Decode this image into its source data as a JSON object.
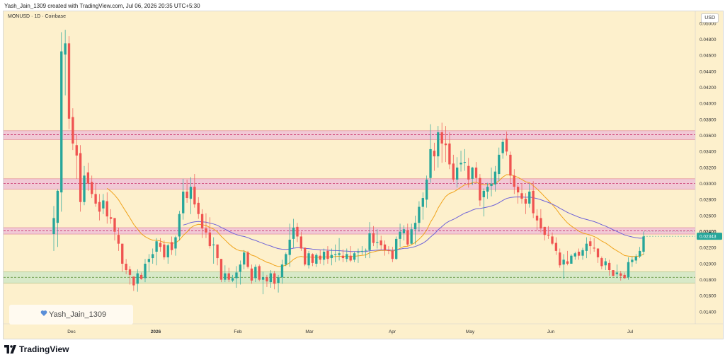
{
  "header": {
    "attribution": "Yash_Jain_1309 created with TradingView.com, Jul 06, 2026 20:35 UTC+5:30"
  },
  "symbol_label": "MONUSD · 1D · Coinbase",
  "currency_button": "USD",
  "watermark_user": "Yash_Jain_1309",
  "footer_brand": "TradingView",
  "colors": {
    "background": "#fdf0cc",
    "up": "#26a69a",
    "down": "#ef5350",
    "ema_fast": "#f0a31b",
    "ema_slow": "#6f63d8",
    "resistance_zone": "#f0c4d6",
    "support_zone": "#d4e8c8",
    "zone_line": "#c2185b",
    "support_line": "#558b2f"
  },
  "chart_data": {
    "type": "candlestick",
    "title": "MONUSD · 1D · Coinbase",
    "y_ticks": [
      "0.05000",
      "0.04800",
      "0.04600",
      "0.04400",
      "0.04200",
      "0.04000",
      "0.03800",
      "0.03600",
      "0.03400",
      "0.03200",
      "0.03000",
      "0.02800",
      "0.02600",
      "0.02400",
      "0.02200",
      "0.02000",
      "0.01800",
      "0.01600",
      "0.01400"
    ],
    "x_ticks": [
      "Dec",
      "2026",
      "Feb",
      "Mar",
      "Apr",
      "May",
      "Jun",
      "Jul"
    ],
    "ylim": [
      0.0125,
      0.0515
    ],
    "current_price": "0.02343",
    "price_line_label": "0.02400",
    "zones": [
      {
        "name": "resistance",
        "low": 0.0355,
        "high": 0.0366,
        "mid": 0.0361
      },
      {
        "name": "resistance",
        "low": 0.0293,
        "high": 0.0306,
        "mid": 0.03
      },
      {
        "name": "resistance",
        "low": 0.0237,
        "high": 0.0245,
        "mid": 0.0241
      },
      {
        "name": "support",
        "low": 0.0176,
        "high": 0.019,
        "mid": 0.0183
      }
    ],
    "ohlc": [
      [
        0.0237,
        0.0272,
        0.0216,
        0.0257
      ],
      [
        0.0251,
        0.0293,
        0.0221,
        0.0291
      ],
      [
        0.0289,
        0.0489,
        0.0265,
        0.0465
      ],
      [
        0.0461,
        0.0492,
        0.041,
        0.0475
      ],
      [
        0.0475,
        0.0484,
        0.0368,
        0.0381
      ],
      [
        0.0383,
        0.0394,
        0.0342,
        0.035
      ],
      [
        0.0348,
        0.0362,
        0.0306,
        0.0335
      ],
      [
        0.0338,
        0.0348,
        0.0265,
        0.0277
      ],
      [
        0.0277,
        0.0322,
        0.0273,
        0.031
      ],
      [
        0.0314,
        0.0326,
        0.0291,
        0.03
      ],
      [
        0.0302,
        0.031,
        0.0282,
        0.0287
      ],
      [
        0.0287,
        0.0301,
        0.0271,
        0.0275
      ],
      [
        0.0277,
        0.0287,
        0.0254,
        0.0265
      ],
      [
        0.0269,
        0.0287,
        0.0262,
        0.0279
      ],
      [
        0.0278,
        0.0289,
        0.025,
        0.0259
      ],
      [
        0.0258,
        0.0268,
        0.025,
        0.0256
      ],
      [
        0.0257,
        0.0257,
        0.0229,
        0.024
      ],
      [
        0.0236,
        0.0245,
        0.0216,
        0.0225
      ],
      [
        0.0225,
        0.0225,
        0.019,
        0.02
      ],
      [
        0.02,
        0.0206,
        0.0187,
        0.0192
      ],
      [
        0.0193,
        0.0197,
        0.0174,
        0.0186
      ],
      [
        0.0184,
        0.0184,
        0.0166,
        0.0173
      ],
      [
        0.0175,
        0.0193,
        0.0165,
        0.0188
      ],
      [
        0.0186,
        0.0189,
        0.018,
        0.0181
      ],
      [
        0.0182,
        0.0206,
        0.0177,
        0.02
      ],
      [
        0.0202,
        0.0212,
        0.019,
        0.0206
      ],
      [
        0.0207,
        0.0219,
        0.02,
        0.0212
      ],
      [
        0.0215,
        0.0232,
        0.0198,
        0.0228
      ],
      [
        0.0226,
        0.0232,
        0.0215,
        0.0221
      ],
      [
        0.0224,
        0.0229,
        0.0205,
        0.0208
      ],
      [
        0.0208,
        0.0225,
        0.02,
        0.0223
      ],
      [
        0.0227,
        0.0234,
        0.0211,
        0.0217
      ],
      [
        0.0219,
        0.0235,
        0.021,
        0.0233
      ],
      [
        0.0234,
        0.0266,
        0.0229,
        0.0262
      ],
      [
        0.0263,
        0.0306,
        0.0255,
        0.029
      ],
      [
        0.029,
        0.0305,
        0.0276,
        0.0282
      ],
      [
        0.0281,
        0.0308,
        0.0262,
        0.0296
      ],
      [
        0.0296,
        0.0312,
        0.027,
        0.0274
      ],
      [
        0.0276,
        0.0283,
        0.0256,
        0.0262
      ],
      [
        0.0262,
        0.0268,
        0.0232,
        0.0244
      ],
      [
        0.0244,
        0.0263,
        0.0232,
        0.0239
      ],
      [
        0.0239,
        0.0258,
        0.0219,
        0.0222
      ],
      [
        0.0223,
        0.0233,
        0.02,
        0.0224
      ],
      [
        0.0224,
        0.0224,
        0.0198,
        0.0207
      ],
      [
        0.0206,
        0.0206,
        0.0177,
        0.018
      ],
      [
        0.018,
        0.0198,
        0.0177,
        0.0188
      ],
      [
        0.0188,
        0.0195,
        0.0177,
        0.018
      ],
      [
        0.0179,
        0.0186,
        0.0177,
        0.0182
      ],
      [
        0.0182,
        0.0197,
        0.017,
        0.0189
      ],
      [
        0.019,
        0.0204,
        0.0174,
        0.0199
      ],
      [
        0.0199,
        0.0217,
        0.0193,
        0.0214
      ],
      [
        0.0214,
        0.0216,
        0.0194,
        0.0196
      ],
      [
        0.0194,
        0.0199,
        0.0175,
        0.0179
      ],
      [
        0.0182,
        0.0199,
        0.0177,
        0.0196
      ],
      [
        0.0197,
        0.0199,
        0.0178,
        0.018
      ],
      [
        0.018,
        0.019,
        0.0162,
        0.0183
      ],
      [
        0.0183,
        0.0186,
        0.0171,
        0.0178
      ],
      [
        0.0177,
        0.0192,
        0.017,
        0.0188
      ],
      [
        0.0188,
        0.0191,
        0.0168,
        0.0175
      ],
      [
        0.0176,
        0.0186,
        0.0164,
        0.0183
      ],
      [
        0.0183,
        0.0205,
        0.0175,
        0.0199
      ],
      [
        0.0199,
        0.0214,
        0.0197,
        0.0212
      ],
      [
        0.0211,
        0.025,
        0.0196,
        0.023
      ],
      [
        0.0231,
        0.0256,
        0.022,
        0.0245
      ],
      [
        0.0246,
        0.0251,
        0.0227,
        0.0234
      ],
      [
        0.0234,
        0.024,
        0.0216,
        0.0219
      ],
      [
        0.022,
        0.022,
        0.0197,
        0.0199
      ],
      [
        0.0198,
        0.0216,
        0.0194,
        0.0213
      ],
      [
        0.0212,
        0.0213,
        0.0197,
        0.0201
      ],
      [
        0.02,
        0.0213,
        0.0196,
        0.0211
      ],
      [
        0.021,
        0.0217,
        0.02,
        0.0205
      ],
      [
        0.0205,
        0.0219,
        0.0198,
        0.0215
      ],
      [
        0.0216,
        0.0222,
        0.02,
        0.0206
      ],
      [
        0.0207,
        0.0219,
        0.0198,
        0.0211
      ],
      [
        0.0211,
        0.0224,
        0.0202,
        0.0212
      ],
      [
        0.0211,
        0.0232,
        0.0204,
        0.0213
      ],
      [
        0.021,
        0.0218,
        0.0202,
        0.0207
      ],
      [
        0.0206,
        0.0219,
        0.0202,
        0.0212
      ],
      [
        0.021,
        0.0222,
        0.0202,
        0.0204
      ],
      [
        0.0205,
        0.0215,
        0.0202,
        0.0213
      ],
      [
        0.0214,
        0.0219,
        0.0201,
        0.0215
      ],
      [
        0.0215,
        0.0222,
        0.0211,
        0.0216
      ],
      [
        0.0217,
        0.0219,
        0.0207,
        0.0217
      ],
      [
        0.0217,
        0.0252,
        0.0207,
        0.0238
      ],
      [
        0.0238,
        0.0247,
        0.0222,
        0.0226
      ],
      [
        0.0226,
        0.0243,
        0.0219,
        0.0227
      ],
      [
        0.0229,
        0.0235,
        0.0217,
        0.0223
      ],
      [
        0.0224,
        0.0229,
        0.021,
        0.0217
      ],
      [
        0.0217,
        0.0222,
        0.0212,
        0.0216
      ],
      [
        0.0216,
        0.0221,
        0.0202,
        0.0206
      ],
      [
        0.0206,
        0.0234,
        0.0205,
        0.0231
      ],
      [
        0.0231,
        0.025,
        0.0221,
        0.024
      ],
      [
        0.0238,
        0.0248,
        0.0229,
        0.0243
      ],
      [
        0.0242,
        0.025,
        0.0222,
        0.0224
      ],
      [
        0.0225,
        0.025,
        0.0224,
        0.0243
      ],
      [
        0.0243,
        0.026,
        0.0224,
        0.0251
      ],
      [
        0.0251,
        0.0278,
        0.024,
        0.0271
      ],
      [
        0.0271,
        0.0289,
        0.0255,
        0.0282
      ],
      [
        0.028,
        0.031,
        0.027,
        0.0305
      ],
      [
        0.0307,
        0.0374,
        0.0301,
        0.0343
      ],
      [
        0.0341,
        0.0351,
        0.0316,
        0.0334
      ],
      [
        0.0334,
        0.0372,
        0.032,
        0.0364
      ],
      [
        0.0364,
        0.0376,
        0.0326,
        0.035
      ],
      [
        0.035,
        0.0372,
        0.0327,
        0.0348
      ],
      [
        0.035,
        0.0364,
        0.0318,
        0.0324
      ],
      [
        0.0325,
        0.0336,
        0.0302,
        0.0305
      ],
      [
        0.0305,
        0.0333,
        0.0295,
        0.032
      ],
      [
        0.0324,
        0.0341,
        0.0315,
        0.0326
      ],
      [
        0.0326,
        0.0343,
        0.0316,
        0.0327
      ],
      [
        0.0322,
        0.0332,
        0.0295,
        0.0305
      ],
      [
        0.0306,
        0.0321,
        0.0298,
        0.032
      ],
      [
        0.032,
        0.0327,
        0.0301,
        0.0307
      ],
      [
        0.0307,
        0.0312,
        0.0272,
        0.0279
      ],
      [
        0.0283,
        0.0294,
        0.0259,
        0.0291
      ],
      [
        0.029,
        0.0301,
        0.0281,
        0.0296
      ],
      [
        0.0297,
        0.032,
        0.0284,
        0.03
      ],
      [
        0.0299,
        0.0322,
        0.029,
        0.0315
      ],
      [
        0.0312,
        0.0345,
        0.0303,
        0.0336
      ],
      [
        0.0338,
        0.0356,
        0.0331,
        0.0352
      ],
      [
        0.0356,
        0.0365,
        0.0335,
        0.034
      ],
      [
        0.0336,
        0.034,
        0.03,
        0.031
      ],
      [
        0.031,
        0.0318,
        0.0287,
        0.0296
      ],
      [
        0.0296,
        0.0299,
        0.0275,
        0.0289
      ],
      [
        0.0288,
        0.03,
        0.0275,
        0.0281
      ],
      [
        0.0281,
        0.0288,
        0.0262,
        0.0275
      ],
      [
        0.0275,
        0.03,
        0.027,
        0.029
      ],
      [
        0.0291,
        0.0303,
        0.0257,
        0.0263
      ],
      [
        0.026,
        0.0268,
        0.0242,
        0.0254
      ],
      [
        0.0257,
        0.0268,
        0.0239,
        0.0244
      ],
      [
        0.0246,
        0.0246,
        0.0229,
        0.0236
      ],
      [
        0.0236,
        0.0247,
        0.0231,
        0.0235
      ],
      [
        0.0234,
        0.0239,
        0.0223,
        0.0225
      ],
      [
        0.0226,
        0.0233,
        0.0211,
        0.0216
      ],
      [
        0.0214,
        0.0219,
        0.0195,
        0.0198
      ],
      [
        0.0199,
        0.0212,
        0.0181,
        0.0205
      ],
      [
        0.0203,
        0.0216,
        0.0198,
        0.02
      ],
      [
        0.02,
        0.0212,
        0.02,
        0.021
      ],
      [
        0.0209,
        0.0215,
        0.0205,
        0.0213
      ],
      [
        0.0215,
        0.0219,
        0.0205,
        0.021
      ],
      [
        0.021,
        0.022,
        0.0205,
        0.0217
      ],
      [
        0.0216,
        0.0233,
        0.0207,
        0.0225
      ],
      [
        0.0228,
        0.0233,
        0.0212,
        0.0222
      ],
      [
        0.022,
        0.0232,
        0.0215,
        0.0219
      ],
      [
        0.0219,
        0.0219,
        0.0201,
        0.0208
      ],
      [
        0.0207,
        0.0209,
        0.0193,
        0.0197
      ],
      [
        0.0198,
        0.0207,
        0.0192,
        0.0203
      ],
      [
        0.0201,
        0.0205,
        0.0185,
        0.0192
      ],
      [
        0.0192,
        0.0192,
        0.0184,
        0.0185
      ],
      [
        0.0187,
        0.0199,
        0.0182,
        0.0189
      ],
      [
        0.0188,
        0.0191,
        0.0179,
        0.0185
      ],
      [
        0.0186,
        0.0189,
        0.0181,
        0.0182
      ],
      [
        0.0183,
        0.0208,
        0.018,
        0.0202
      ],
      [
        0.0202,
        0.0209,
        0.0196,
        0.0205
      ],
      [
        0.0204,
        0.0212,
        0.02,
        0.0209
      ],
      [
        0.0209,
        0.0221,
        0.0207,
        0.0216
      ],
      [
        0.0215,
        0.024,
        0.0211,
        0.0234
      ]
    ]
  }
}
